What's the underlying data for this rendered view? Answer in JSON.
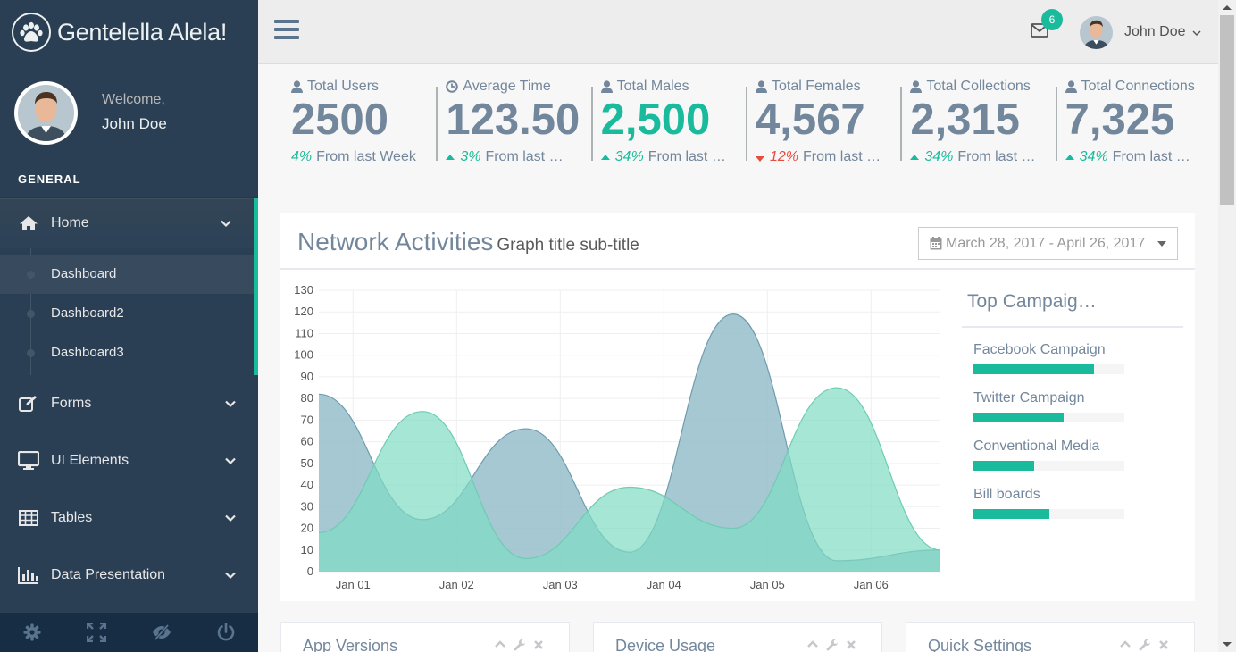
{
  "brand": {
    "title": "Gentelella Alela!"
  },
  "profile": {
    "welcome": "Welcome,",
    "name": "John Doe"
  },
  "sidebar": {
    "section_title": "GENERAL",
    "menu": [
      {
        "label": "Home",
        "icon": "home-icon"
      },
      {
        "label": "Forms",
        "icon": "edit-icon"
      },
      {
        "label": "UI Elements",
        "icon": "desktop-icon"
      },
      {
        "label": "Tables",
        "icon": "table-icon"
      },
      {
        "label": "Data Presentation",
        "icon": "bar-chart-icon"
      }
    ],
    "home_submenu": [
      "Dashboard",
      "Dashboard2",
      "Dashboard3"
    ],
    "footer_icons": [
      "gear-icon",
      "fullscreen-icon",
      "eye-slash-icon",
      "power-icon"
    ]
  },
  "topnav": {
    "mail_badge": "6",
    "user_name": "John Doe"
  },
  "tiles": [
    {
      "title": "Total Users",
      "icon": "user-icon",
      "count": "2500",
      "pct": "4%",
      "text": "From last Week",
      "trend": "none",
      "highlight": false
    },
    {
      "title": "Average Time",
      "icon": "clock-icon",
      "count": "123.50",
      "pct": "3%",
      "text": "From last Week",
      "trend": "up",
      "highlight": false
    },
    {
      "title": "Total Males",
      "icon": "user-icon",
      "count": "2,500",
      "pct": "34%",
      "text": "From last Week",
      "trend": "up",
      "highlight": true
    },
    {
      "title": "Total Females",
      "icon": "user-icon",
      "count": "4,567",
      "pct": "12%",
      "text": "From last Week",
      "trend": "down",
      "highlight": false
    },
    {
      "title": "Total Collections",
      "icon": "user-icon",
      "count": "2,315",
      "pct": "34%",
      "text": "From last Week",
      "trend": "up",
      "highlight": false
    },
    {
      "title": "Total Connections",
      "icon": "user-icon",
      "count": "7,325",
      "pct": "34%",
      "text": "From last Week",
      "trend": "up",
      "highlight": false
    }
  ],
  "network": {
    "title": "Network Activities",
    "subtitle": "Graph title sub-title",
    "date_range": "March 28, 2017 - April 26, 2017"
  },
  "chart_data": {
    "type": "area",
    "title": "",
    "xlabel": "",
    "ylabel": "",
    "ylim": [
      0,
      130
    ],
    "yticks": [
      0,
      10,
      20,
      30,
      40,
      50,
      60,
      70,
      80,
      90,
      100,
      110,
      120,
      130
    ],
    "x_tick_labels": [
      "Jan 01",
      "Jan 02",
      "Jan 03",
      "Jan 04",
      "Jan 05",
      "Jan 06"
    ],
    "x_tick_positions": [
      0.33,
      1.33,
      2.33,
      3.33,
      4.33,
      5.33
    ],
    "x_range": [
      0,
      6
    ],
    "grid": true,
    "series": [
      {
        "color": "#96BECA",
        "stroke": "#6E9CAE",
        "opacity": 0.85,
        "x": [
          0,
          1.0,
          2.0,
          3.0,
          4.0,
          5.0,
          6.0
        ],
        "values": [
          82,
          24,
          66,
          9,
          119,
          5,
          10
        ]
      },
      {
        "color": "#7FDCC3",
        "stroke": "#6FCBB3",
        "opacity": 0.7,
        "x": [
          0,
          1.0,
          2.0,
          3.0,
          4.0,
          5.0,
          6.0
        ],
        "values": [
          18,
          74,
          6,
          39,
          20,
          85,
          10
        ]
      }
    ]
  },
  "campaigns": {
    "title": "Top Campaign Performance",
    "items": [
      {
        "label": "Facebook Campaign",
        "value": 80
      },
      {
        "label": "Twitter Campaign",
        "value": 60
      },
      {
        "label": "Conventional Media",
        "value": 40
      },
      {
        "label": "Bill boards",
        "value": 50
      }
    ]
  },
  "bottom_panels": [
    {
      "title": "App Versions"
    },
    {
      "title": "Device Usage"
    },
    {
      "title": "Quick Settings"
    }
  ],
  "colors": {
    "accent": "#1ABB9C",
    "sidebar": "#2A3F54",
    "text": "#73879C",
    "down": "#E74C3C"
  }
}
